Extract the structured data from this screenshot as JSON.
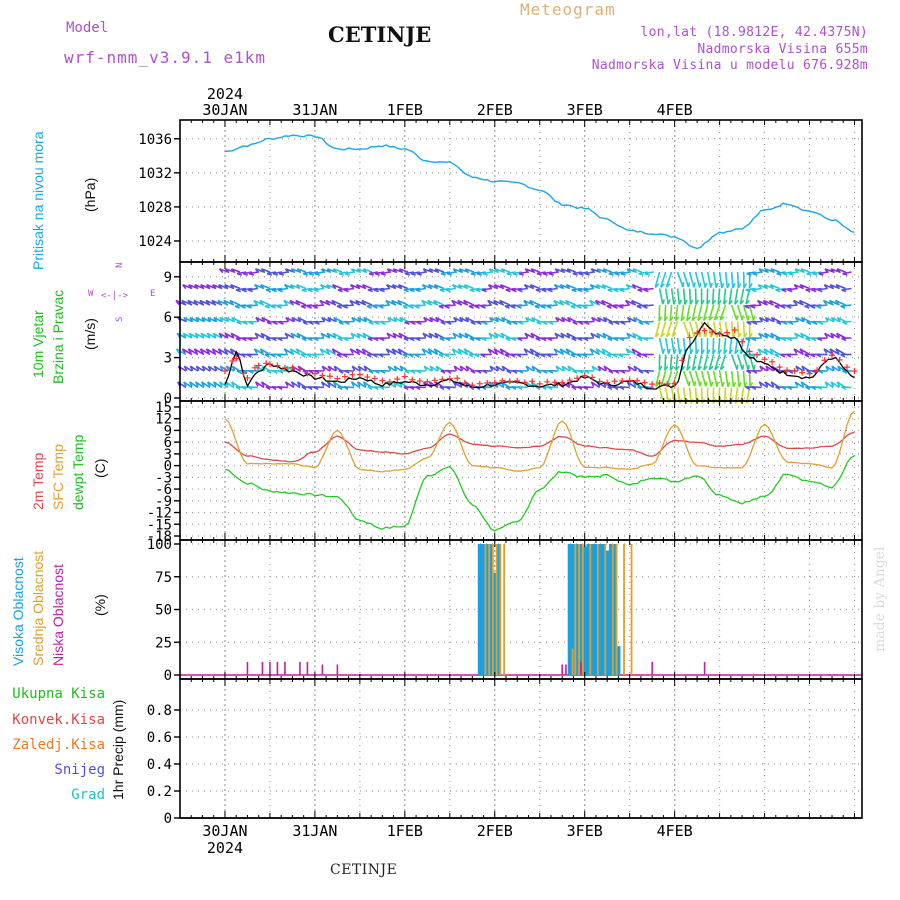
{
  "header": {
    "model_label": "Model",
    "model_name": "wrf-nmm_v3.9.1 e1km",
    "station": "CETINJE",
    "meteogram": "Meteogram",
    "lonlat": "lon,lat (18.9812E, 42.4375N)",
    "elevation": "Nadmorska Visina 655m",
    "model_elevation": "Nadmorska Visina u modelu 676.928m",
    "footer_station": "CETINJE",
    "made_by": "made by Angel"
  },
  "colors": {
    "pressure": "#1aa7e8",
    "temp2m": "#e04848",
    "sfc": "#e0a030",
    "dewpt": "#22cc22",
    "high_cloud": "#1aa0e0",
    "mid_cloud": "#e0a030",
    "low_cloud": "#c020a0",
    "wind_label": "#22bb22",
    "dir_label": "#b04fd0"
  },
  "chart_data": [
    {
      "type": "line",
      "panel": "pressure",
      "ylabel": "Pritisak na nivou mora",
      "unit": "(hPa)",
      "ylim": [
        1022,
        1037.5
      ],
      "yticks": [
        1024,
        1028,
        1032,
        1036
      ],
      "x_hours": [
        0,
        6,
        12,
        18,
        24,
        30,
        36,
        42,
        48,
        54,
        60,
        66,
        72,
        78,
        84,
        90,
        96,
        102,
        108,
        114,
        120,
        126,
        132,
        138,
        144,
        150,
        156,
        162,
        168
      ],
      "values": [
        1034.5,
        1035.2,
        1036.0,
        1036.4,
        1036.3,
        1034.8,
        1034.8,
        1035.2,
        1034.8,
        1033.4,
        1033.2,
        1031.5,
        1031.0,
        1030.8,
        1030.0,
        1028.3,
        1027.8,
        1026.5,
        1025.2,
        1024.9,
        1024.5,
        1023.2,
        1025.0,
        1025.5,
        1027.6,
        1028.4,
        1027.5,
        1026.5,
        1025.0
      ]
    },
    {
      "type": "line",
      "panel": "wind",
      "ylabel": "10m Vjetar Brzina i Pravac",
      "unit": "(m/s)",
      "ylim": [
        0,
        9.8
      ],
      "yticks": [
        0,
        3,
        6,
        9
      ],
      "compass": {
        "n": "N",
        "e": "E",
        "s": "S",
        "w": "W"
      },
      "x_hours": [
        0,
        3,
        6,
        9,
        12,
        18,
        24,
        30,
        36,
        42,
        48,
        54,
        60,
        66,
        72,
        78,
        84,
        90,
        96,
        102,
        108,
        114,
        120,
        124,
        128,
        132,
        136,
        140,
        144,
        150,
        156,
        162,
        168
      ],
      "speed": [
        1.0,
        3.5,
        1.0,
        2.0,
        2.5,
        2.0,
        1.5,
        1.2,
        1.5,
        1.0,
        1.2,
        1.0,
        1.3,
        0.8,
        1.0,
        1.1,
        0.9,
        1.0,
        1.5,
        1.0,
        1.2,
        0.8,
        0.9,
        4.0,
        5.5,
        4.8,
        4.5,
        3.0,
        2.5,
        1.8,
        1.5,
        3.0,
        1.5
      ],
      "gust": [
        2.0,
        3.0,
        1.5,
        2.5,
        2.5,
        2.2,
        1.8,
        1.5,
        1.8,
        1.2,
        1.5,
        1.2,
        1.5,
        1.0,
        1.2,
        1.3,
        1.1,
        1.2,
        1.6,
        1.2,
        1.4,
        1.0,
        1.1,
        4.5,
        5.0,
        4.8,
        5.0,
        3.5,
        2.8,
        2.0,
        1.8,
        3.2,
        2.0
      ]
    },
    {
      "type": "line",
      "panel": "temperature",
      "ylabel": "2m Temp SFC Temp dewpt Temp",
      "unit": "(C)",
      "ylim": [
        -18,
        15.5
      ],
      "yticks": [
        15,
        12,
        9,
        6,
        3,
        0,
        -3,
        -6,
        -9,
        -12,
        -15,
        -18
      ],
      "x_hours": [
        0,
        6,
        12,
        18,
        24,
        30,
        36,
        42,
        48,
        54,
        60,
        66,
        72,
        78,
        84,
        90,
        96,
        102,
        108,
        114,
        120,
        126,
        132,
        138,
        144,
        150,
        156,
        162,
        168
      ],
      "series": [
        {
          "name": "2m Temp",
          "values": [
            6,
            2.5,
            1.5,
            1.0,
            3.5,
            7.5,
            4.0,
            3.5,
            3.0,
            4.5,
            8.0,
            5.5,
            5.0,
            4.5,
            5.0,
            7.5,
            5.0,
            4.5,
            4.0,
            2.5,
            6.5,
            6.0,
            5.0,
            5.5,
            7.5,
            4.5,
            4.5,
            5.0,
            8.5
          ]
        },
        {
          "name": "SFC Temp",
          "values": [
            12,
            0.5,
            0.5,
            0.5,
            -0.5,
            9.0,
            -1.0,
            -1.5,
            -1.0,
            2.0,
            11.0,
            0.0,
            -0.5,
            -1.5,
            -0.5,
            11.5,
            -0.5,
            -0.5,
            -1.0,
            0.5,
            10.5,
            0.0,
            -0.5,
            -0.5,
            10.5,
            1.0,
            0.5,
            -0.5,
            14.0
          ]
        },
        {
          "name": "dewpt Temp",
          "values": [
            -1,
            -4.5,
            -6.5,
            -7.0,
            -7.5,
            -8.0,
            -14.0,
            -16.0,
            -15.5,
            -2.5,
            -0.5,
            -10.0,
            -16.5,
            -14.5,
            -6.0,
            -1.5,
            -3.0,
            -2.5,
            -5.0,
            -3.0,
            -4.0,
            -2.5,
            -7.5,
            -9.5,
            -8.0,
            -2.0,
            -4.0,
            -5.5,
            2.5
          ]
        }
      ]
    },
    {
      "type": "bar",
      "panel": "clouds",
      "ylabel": "Visoka Oblacnost Srednja Oblacnost Niska Oblacnost",
      "unit": "(%)",
      "ylim": [
        0,
        100
      ],
      "yticks": [
        0,
        25,
        50,
        75,
        100
      ],
      "high_hours": [
        68,
        68.5,
        69,
        70,
        71,
        72,
        73,
        92,
        92.5,
        93,
        94,
        95,
        96,
        97,
        98,
        99,
        100,
        101,
        102,
        103,
        104,
        105
      ],
      "high_values": [
        100,
        100,
        100,
        100,
        100,
        78,
        100,
        100,
        100,
        100,
        100,
        100,
        98,
        100,
        100,
        100,
        100,
        100,
        95,
        100,
        100,
        22
      ],
      "mid_hours": [
        69.5,
        70.5,
        71.5,
        72.5,
        73.5,
        74.5,
        92.8,
        93.5,
        94.5,
        95.5,
        97.5,
        99.5,
        101.5,
        103.5,
        104.5,
        106.5,
        108.5
      ],
      "mid_values": [
        100,
        100,
        100,
        100,
        100,
        100,
        20,
        100,
        100,
        100,
        100,
        100,
        100,
        100,
        100,
        100,
        100
      ],
      "low_hours": [
        6,
        10,
        12,
        14,
        16,
        20,
        22,
        26,
        30,
        90,
        91,
        95,
        114,
        128
      ],
      "low_values": [
        10,
        10,
        10,
        10,
        10,
        10,
        10,
        8,
        8,
        8,
        8,
        10,
        10,
        10
      ]
    },
    {
      "type": "bar",
      "panel": "precip",
      "ylabel": "1hr Precip",
      "unit": "(mm)",
      "ylim": [
        0,
        1.0
      ],
      "yticks": [
        0,
        0.2,
        0.4,
        0.6,
        0.8
      ],
      "legend": [
        "Ukupna Kisa",
        "Konvek.Kisa",
        "Zaledj.Kisa",
        "Snijeg",
        "Grad"
      ],
      "legend_colors": [
        "#22bb22",
        "#e04848",
        "#f07828",
        "#5050e0",
        "#22c0c0"
      ],
      "values": []
    }
  ],
  "x_axis": {
    "top_year": "2024",
    "bottom_year": "2024",
    "labels": [
      "30JAN",
      "31JAN",
      "1FEB",
      "2FEB",
      "3FEB",
      "4FEB"
    ]
  }
}
